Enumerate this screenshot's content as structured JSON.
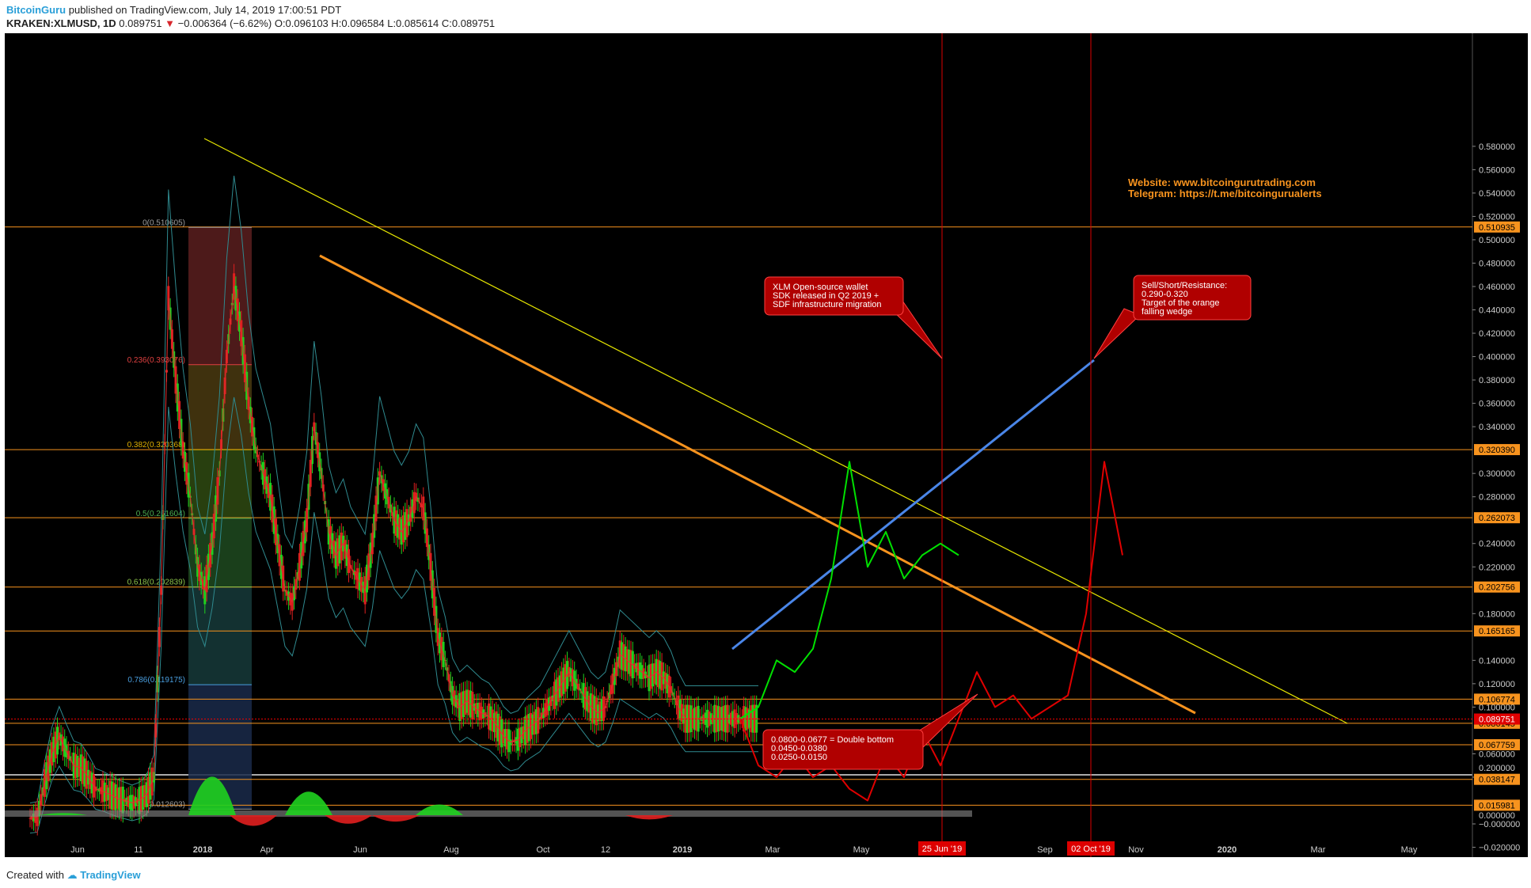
{
  "header": {
    "author": "BitcoinGuru",
    "published": "published on TradingView.com, July 14, 2019 17:00:51 PDT",
    "symbol": "KRAKEN:XLMUSD, 1D",
    "last": "0.089751",
    "arrow": "▼",
    "change": "−0.006364 (−6.62%)",
    "ohlc": "O:0.096103 H:0.096584 L:0.085614 C:0.089751"
  },
  "footer": {
    "created": "Created with",
    "brand": "TradingView"
  },
  "colors": {
    "background": "#000000",
    "fib_line": "#f7931e",
    "green_path": "#00e000",
    "red_path": "#e00000",
    "blue_trend": "#4a86e8",
    "orange_wedge": "#f7931e",
    "yellow_trend": "#e6e600",
    "price_label": "#f7931e",
    "last_price_label": "#e00000"
  },
  "chart_data": {
    "type": "line",
    "title": "KRAKEN:XLMUSD, 1D",
    "ylim": [
      -0.03,
      0.598
    ],
    "y_ticks": [
      "0.580000",
      "0.560000",
      "0.540000",
      "0.520000",
      "0.500000",
      "0.480000",
      "0.460000",
      "0.440000",
      "0.420000",
      "0.400000",
      "0.380000",
      "0.360000",
      "0.340000",
      "0.300000",
      "0.280000",
      "0.240000",
      "0.220000",
      "0.180000",
      "0.140000",
      "0.120000",
      "0.100000",
      "0.060000",
      "0.040000",
      "−0.000000",
      "−0.020000"
    ],
    "y_tick_values": [
      0.58,
      0.56,
      0.54,
      0.52,
      0.5,
      0.48,
      0.46,
      0.44,
      0.42,
      0.4,
      0.38,
      0.36,
      0.34,
      0.3,
      0.28,
      0.24,
      0.22,
      0.18,
      0.14,
      0.12,
      0.1,
      0.06,
      0.04,
      0.0,
      -0.02
    ],
    "x_ticks": [
      "Jun",
      "11",
      "2018",
      "Apr",
      "Jun",
      "Aug",
      "Oct",
      "12",
      "2019",
      "Mar",
      "May",
      "Sep",
      "Nov",
      "2020",
      "Mar",
      "May"
    ],
    "x_highlight_ticks": [
      "25 Jun '19",
      "02 Oct '19"
    ],
    "fib_levels": [
      {
        "label": "0(0.510605)",
        "value": 0.510605,
        "color": "#9e9e9e"
      },
      {
        "label": "0.236(0.393076)",
        "value": 0.393076,
        "color": "#e04040"
      },
      {
        "label": "0.382(0.320368)",
        "value": 0.320368,
        "color": "#e0b000"
      },
      {
        "label": "0.5(0.261604)",
        "value": 0.261604,
        "color": "#4caf50"
      },
      {
        "label": "0.618(0.202839)",
        "value": 0.202839,
        "color": "#8bc34a"
      },
      {
        "label": "0.786(0.119175)",
        "value": 0.119175,
        "color": "#4a9fe0"
      },
      {
        "label": "1(0.012603)",
        "value": 0.012603,
        "color": "#9e9e9e"
      }
    ],
    "horizontal_levels": [
      {
        "label": "0.510935",
        "value": 0.510935
      },
      {
        "label": "0.320390",
        "value": 0.32039
      },
      {
        "label": "0.262073",
        "value": 0.262073
      },
      {
        "label": "0.202756",
        "value": 0.202756
      },
      {
        "label": "0.165165",
        "value": 0.165165
      },
      {
        "label": "0.106774",
        "value": 0.106774
      },
      {
        "label": "0.086145",
        "value": 0.086145
      },
      {
        "label": "0.067759",
        "value": 0.067759
      },
      {
        "label": "0.038147",
        "value": 0.038147
      },
      {
        "label": "0.015981",
        "value": 0.015981
      }
    ],
    "last_price": {
      "label": "0.089751",
      "value": 0.089751
    },
    "oscillator_ticks": [
      "0.200000",
      "0.000000"
    ],
    "annotations": {
      "website": "Website: www.bitcoingurutrading.com",
      "telegram": "Telegram: https://t.me/bitcoingurualerts",
      "wallet_note": [
        "XLM Open-source wallet",
        "SDK released in Q2 2019 +",
        "SDF infrastructure migration"
      ],
      "resistance_note": [
        "Sell/Short/Resistance:",
        "0.290-0.320",
        "Target of the orange",
        "falling wedge"
      ],
      "support_note": [
        "0.0800-0.0677 = Double bottom",
        "0.0450-0.0380",
        "0.0250-0.0150"
      ]
    },
    "price_series": {
      "t": [
        0,
        4,
        8,
        12,
        16,
        20,
        24,
        28,
        32,
        36,
        40,
        44,
        48,
        52,
        56,
        60,
        64,
        68,
        72,
        76,
        80,
        84,
        88,
        92,
        96,
        100,
        104,
        108,
        112,
        116,
        120,
        124,
        128,
        132,
        136,
        140,
        144,
        148,
        152,
        156,
        160,
        164,
        168,
        172,
        176,
        180,
        184,
        188,
        192,
        196,
        200,
        204,
        208,
        212,
        216,
        220,
        224,
        228,
        232,
        236,
        240,
        244,
        248,
        252,
        256,
        260,
        264,
        268,
        272,
        276,
        280,
        284,
        288,
        292,
        296,
        300,
        304,
        308,
        312,
        316,
        320,
        324,
        328,
        332,
        336,
        340,
        344,
        348,
        352,
        356,
        360,
        364,
        368,
        372,
        376,
        380,
        384,
        388,
        392,
        396,
        400
      ],
      "close": [
        0.005,
        0.006,
        0.035,
        0.06,
        0.075,
        0.062,
        0.05,
        0.048,
        0.04,
        0.03,
        0.028,
        0.025,
        0.022,
        0.02,
        0.018,
        0.02,
        0.025,
        0.04,
        0.2,
        0.45,
        0.38,
        0.32,
        0.28,
        0.22,
        0.2,
        0.24,
        0.3,
        0.4,
        0.46,
        0.42,
        0.36,
        0.32,
        0.3,
        0.28,
        0.24,
        0.2,
        0.19,
        0.22,
        0.26,
        0.34,
        0.3,
        0.25,
        0.23,
        0.24,
        0.22,
        0.21,
        0.2,
        0.24,
        0.3,
        0.28,
        0.26,
        0.25,
        0.26,
        0.28,
        0.27,
        0.22,
        0.16,
        0.14,
        0.11,
        0.1,
        0.105,
        0.1,
        0.095,
        0.092,
        0.085,
        0.075,
        0.07,
        0.072,
        0.08,
        0.085,
        0.09,
        0.1,
        0.11,
        0.12,
        0.13,
        0.12,
        0.11,
        0.1,
        0.095,
        0.1,
        0.12,
        0.145,
        0.14,
        0.135,
        0.13,
        0.125,
        0.13,
        0.125,
        0.115,
        0.1,
        0.09,
        0.09,
        0.09,
        0.09,
        0.09,
        0.09,
        0.09,
        0.09,
        0.09,
        0.09,
        0.09
      ]
    },
    "projection_green": {
      "x_days": [
        390,
        400,
        410,
        420,
        430,
        440,
        450,
        460,
        470,
        480,
        490,
        500,
        510
      ],
      "values": [
        0.09,
        0.1,
        0.14,
        0.13,
        0.15,
        0.21,
        0.31,
        0.22,
        0.25,
        0.21,
        0.23,
        0.24,
        0.23
      ]
    },
    "projection_red": {
      "x_days": [
        390,
        400,
        410,
        420,
        430,
        440,
        450,
        460,
        470,
        480,
        490,
        500,
        510,
        520,
        530,
        540,
        550,
        560,
        570,
        580,
        590,
        600
      ],
      "values": [
        0.09,
        0.05,
        0.04,
        0.06,
        0.04,
        0.05,
        0.03,
        0.02,
        0.06,
        0.04,
        0.08,
        0.05,
        0.09,
        0.13,
        0.1,
        0.11,
        0.09,
        0.1,
        0.11,
        0.18,
        0.31,
        0.23
      ]
    }
  }
}
